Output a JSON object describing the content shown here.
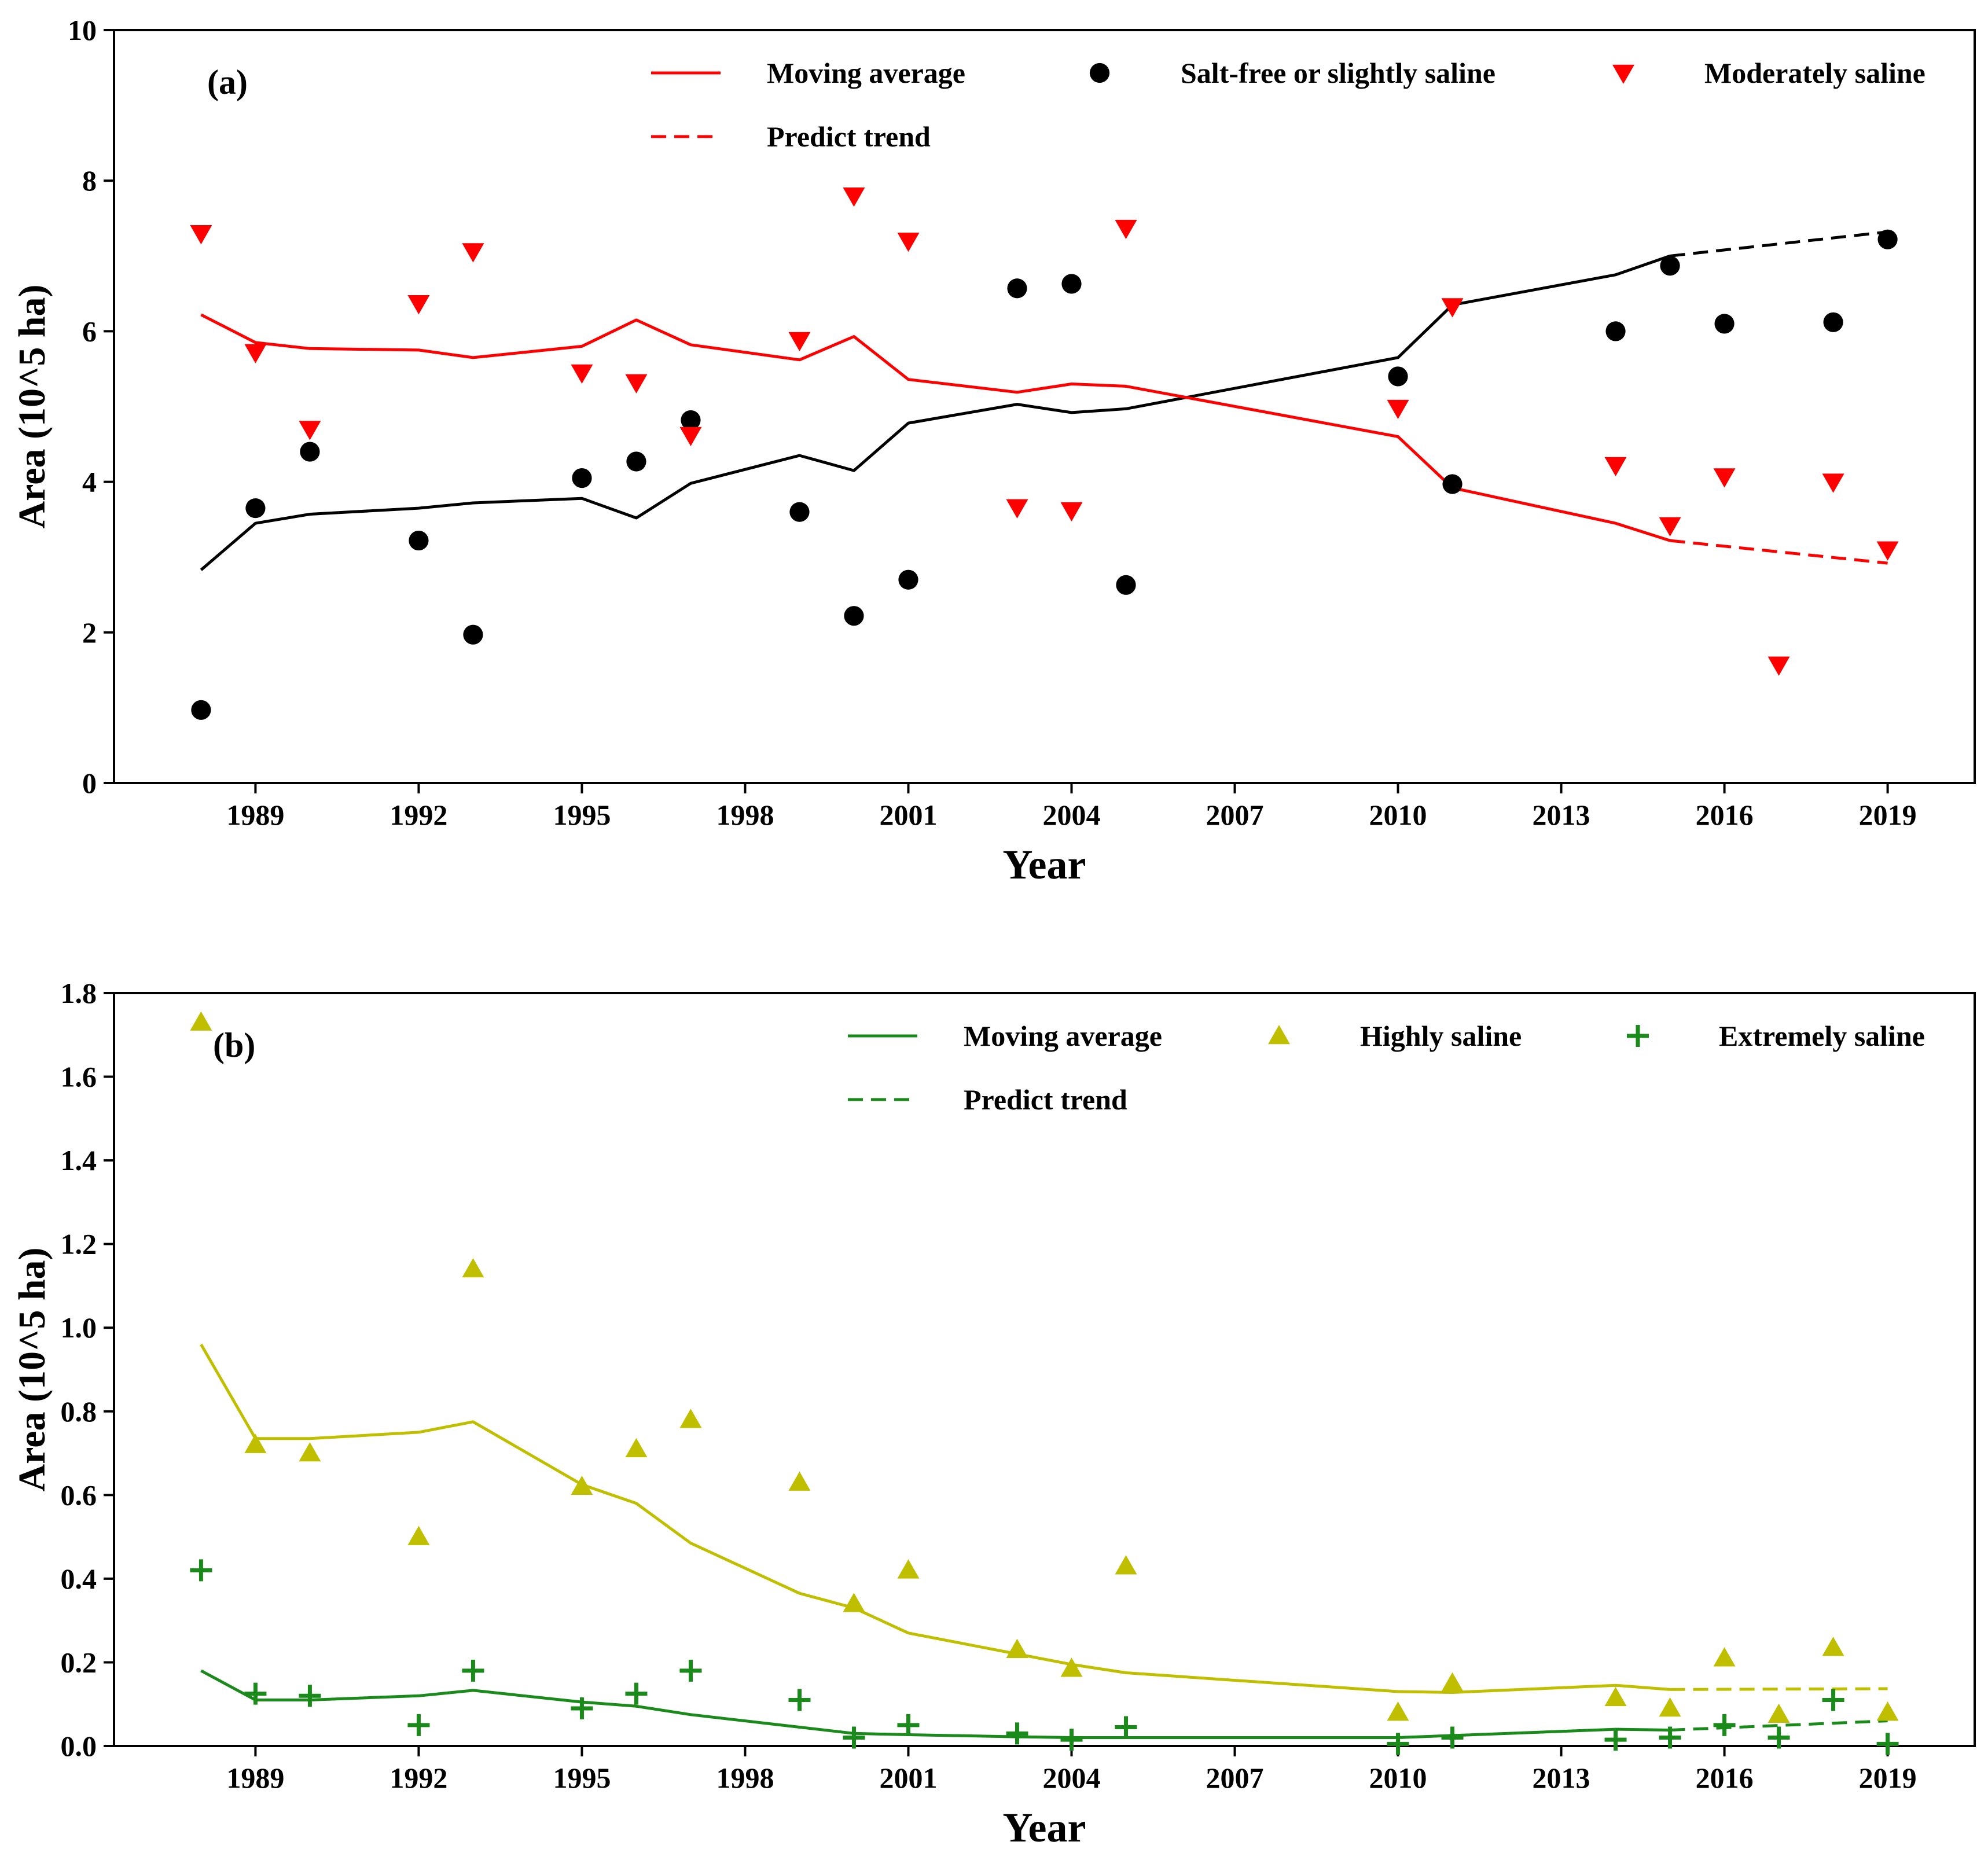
{
  "chart_data": [
    {
      "type": "line",
      "panel_label": "(a)",
      "xlabel": "Year",
      "ylabel": "Area (10^5 ha)",
      "xlim": [
        1986.4,
        2020.6
      ],
      "ylim": [
        0,
        10
      ],
      "xticks": [
        1989,
        1992,
        1995,
        1998,
        2001,
        2004,
        2007,
        2010,
        2013,
        2016,
        2019
      ],
      "xtick_labels": [
        "1989",
        "1992",
        "1995",
        "1998",
        "2001",
        "2004",
        "2007",
        "2010",
        "2013",
        "2016",
        "2019"
      ],
      "yticks": [
        0,
        2,
        4,
        6,
        8,
        10
      ],
      "ytick_labels": [
        "0",
        "2",
        "4",
        "6",
        "8",
        "10"
      ],
      "legend": [
        {
          "label": "Moving average",
          "kind": "line",
          "color": "#ff0000"
        },
        {
          "label": "Salt-free or slightly saline",
          "kind": "marker",
          "marker": "circle",
          "color": "#000000"
        },
        {
          "label": "Moderately saline",
          "kind": "marker",
          "marker": "triangle-down",
          "color": "#ff0000"
        },
        {
          "label": "Predict trend",
          "kind": "dashed",
          "color": "#ff0000"
        }
      ],
      "lines": [
        {
          "name": "Moving average (salt-free or slightly saline)",
          "color": "#000000",
          "style": "solid",
          "x": [
            1988,
            1989,
            1990,
            1992,
            1993,
            1995,
            1996,
            1997,
            1999,
            2000,
            2001,
            2003,
            2004,
            2005,
            2010,
            2011,
            2014,
            2015
          ],
          "y": [
            2.83,
            3.45,
            3.57,
            3.65,
            3.72,
            3.78,
            3.52,
            3.98,
            4.35,
            4.15,
            4.78,
            5.03,
            4.92,
            4.97,
            5.65,
            6.35,
            6.75,
            7.0
          ]
        },
        {
          "name": "Predict trend (salt-free or slightly saline)",
          "color": "#000000",
          "style": "dashed",
          "x": [
            2015,
            2019
          ],
          "y": [
            7.0,
            7.32
          ]
        },
        {
          "name": "Moving average (moderately saline)",
          "color": "#ff0000",
          "style": "solid",
          "x": [
            1988,
            1989,
            1990,
            1992,
            1993,
            1995,
            1996,
            1997,
            1999,
            2000,
            2001,
            2003,
            2004,
            2005,
            2010,
            2011,
            2014,
            2015
          ],
          "y": [
            6.22,
            5.85,
            5.77,
            5.75,
            5.65,
            5.8,
            6.15,
            5.82,
            5.62,
            5.93,
            5.36,
            5.19,
            5.3,
            5.27,
            4.6,
            3.92,
            3.45,
            3.22
          ]
        },
        {
          "name": "Predict trend (moderately saline)",
          "color": "#ff0000",
          "style": "dashed",
          "x": [
            2015,
            2019
          ],
          "y": [
            3.22,
            2.92
          ]
        }
      ],
      "scatter": [
        {
          "name": "Salt-free or slightly saline",
          "marker": "circle",
          "color": "#000000",
          "x": [
            1988,
            1989,
            1990,
            1992,
            1993,
            1995,
            1996,
            1997,
            1999,
            2000,
            2001,
            2003,
            2004,
            2005,
            2010,
            2011,
            2014,
            2015,
            2016,
            2018,
            2019
          ],
          "y": [
            0.97,
            3.65,
            4.4,
            3.22,
            1.97,
            4.05,
            4.27,
            4.82,
            3.6,
            2.22,
            2.7,
            6.57,
            6.63,
            2.63,
            5.4,
            3.97,
            6.0,
            6.87,
            6.1,
            6.12,
            7.22
          ]
        },
        {
          "name": "Moderately saline",
          "marker": "triangle-down",
          "color": "#ff0000",
          "x": [
            1988,
            1989,
            1990,
            1992,
            1993,
            1995,
            1996,
            1997,
            1999,
            2000,
            2001,
            2003,
            2004,
            2005,
            2010,
            2011,
            2014,
            2015,
            2016,
            2017,
            2018,
            2019
          ],
          "y": [
            7.3,
            5.72,
            4.7,
            6.37,
            7.06,
            5.45,
            5.32,
            4.62,
            5.88,
            7.8,
            7.2,
            3.66,
            3.62,
            7.37,
            4.98,
            6.33,
            4.22,
            3.42,
            4.07,
            1.57,
            4.0,
            3.1
          ]
        }
      ]
    },
    {
      "type": "line",
      "panel_label": "(b)",
      "xlabel": "Year",
      "ylabel": "Area (10^5 ha)",
      "xlim": [
        1986.4,
        2020.6
      ],
      "ylim": [
        0,
        1.8
      ],
      "xticks": [
        1989,
        1992,
        1995,
        1998,
        2001,
        2004,
        2007,
        2010,
        2013,
        2016,
        2019
      ],
      "xtick_labels": [
        "1989",
        "1992",
        "1995",
        "1998",
        "2001",
        "2004",
        "2007",
        "2010",
        "2013",
        "2016",
        "2019"
      ],
      "yticks": [
        0,
        0.2,
        0.4,
        0.6,
        0.8,
        1.0,
        1.2,
        1.4,
        1.6,
        1.8
      ],
      "ytick_labels": [
        "0.0",
        "0.2",
        "0.4",
        "0.6",
        "0.8",
        "1.0",
        "1.2",
        "1.4",
        "1.6",
        "1.8"
      ],
      "legend": [
        {
          "label": "Moving average",
          "kind": "line",
          "color": "#1a8a1a"
        },
        {
          "label": "Highly saline",
          "kind": "marker",
          "marker": "triangle-up",
          "color": "#bfbf00"
        },
        {
          "label": "Extremely saline",
          "kind": "marker",
          "marker": "plus",
          "color": "#1a8a1a"
        },
        {
          "label": "Predict trend",
          "kind": "dashed",
          "color": "#1a8a1a"
        }
      ],
      "lines": [
        {
          "name": "Moving average (highly saline)",
          "color": "#bfbf00",
          "style": "solid",
          "x": [
            1988,
            1989,
            1990,
            1992,
            1993,
            1995,
            1996,
            1997,
            1999,
            2000,
            2001,
            2003,
            2004,
            2005,
            2010,
            2011,
            2014,
            2015
          ],
          "y": [
            0.96,
            0.735,
            0.735,
            0.75,
            0.775,
            0.625,
            0.58,
            0.485,
            0.365,
            0.33,
            0.27,
            0.22,
            0.195,
            0.175,
            0.13,
            0.128,
            0.145,
            0.135
          ]
        },
        {
          "name": "Predict trend (highly saline)",
          "color": "#bfbf00",
          "style": "dashed",
          "x": [
            2015,
            2019
          ],
          "y": [
            0.135,
            0.137
          ]
        },
        {
          "name": "Moving average (extremely saline)",
          "color": "#1a8a1a",
          "style": "solid",
          "x": [
            1988,
            1989,
            1990,
            1992,
            1993,
            1995,
            1996,
            1997,
            1999,
            2000,
            2001,
            2003,
            2004,
            2005,
            2010,
            2011,
            2014,
            2015
          ],
          "y": [
            0.18,
            0.11,
            0.11,
            0.12,
            0.133,
            0.105,
            0.095,
            0.075,
            0.045,
            0.03,
            0.027,
            0.022,
            0.02,
            0.02,
            0.02,
            0.025,
            0.04,
            0.038
          ]
        },
        {
          "name": "Predict trend (extremely saline)",
          "color": "#1a8a1a",
          "style": "dashed",
          "x": [
            2015,
            2019
          ],
          "y": [
            0.038,
            0.06
          ]
        }
      ],
      "scatter": [
        {
          "name": "Highly saline",
          "marker": "triangle-up",
          "color": "#bfbf00",
          "x": [
            1988,
            1989,
            1990,
            1992,
            1993,
            1995,
            1996,
            1997,
            1999,
            2000,
            2001,
            2003,
            2004,
            2005,
            2010,
            2011,
            2014,
            2015,
            2016,
            2017,
            2018,
            2019
          ],
          "y": [
            1.73,
            0.72,
            0.7,
            0.5,
            1.14,
            0.62,
            0.71,
            0.78,
            0.63,
            0.34,
            0.42,
            0.23,
            0.185,
            0.43,
            0.08,
            0.15,
            0.115,
            0.09,
            0.21,
            0.075,
            0.235,
            0.08
          ]
        },
        {
          "name": "Extremely saline",
          "marker": "plus",
          "color": "#1a8a1a",
          "x": [
            1988,
            1989,
            1990,
            1992,
            1993,
            1995,
            1996,
            1997,
            1999,
            2000,
            2001,
            2003,
            2004,
            2005,
            2010,
            2011,
            2014,
            2015,
            2016,
            2017,
            2018,
            2019
          ],
          "y": [
            0.42,
            0.125,
            0.12,
            0.05,
            0.18,
            0.09,
            0.125,
            0.18,
            0.11,
            0.02,
            0.05,
            0.03,
            0.015,
            0.045,
            0.005,
            0.02,
            0.015,
            0.02,
            0.05,
            0.02,
            0.11,
            0.005
          ]
        }
      ]
    }
  ]
}
